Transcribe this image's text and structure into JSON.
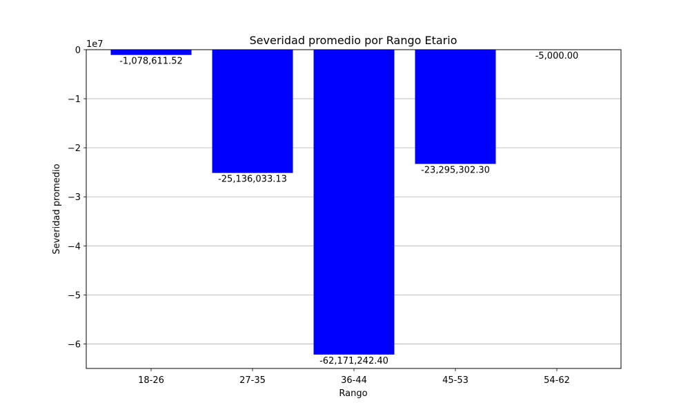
{
  "chart_data": {
    "type": "bar",
    "title": "Severidad promedio por Rango Etario",
    "xlabel": "Rango",
    "ylabel": "Severidad promedio",
    "categories": [
      "18-26",
      "27-35",
      "36-44",
      "45-53",
      "54-62"
    ],
    "values": [
      -1078611.52,
      -25136033.13,
      -62171242.4,
      -23295302.3,
      -5000.0
    ],
    "data_labels": [
      "-1,078,611.52",
      "-25,136,033.13",
      "-62,171,242.40",
      "-23,295,302.30",
      "-5,000.00"
    ],
    "y_offset_label": "1e7",
    "y_ticks": [
      0,
      -1,
      -2,
      -3,
      -4,
      -5,
      -6
    ],
    "y_tick_labels": [
      "0",
      "−1",
      "−2",
      "−3",
      "−4",
      "−5",
      "−6"
    ],
    "ylim": [
      -6.5,
      0
    ],
    "y_scale": 10000000,
    "grid": "y-major",
    "bar_color": "#0000ff",
    "grid_color": "#b0b0b0"
  }
}
